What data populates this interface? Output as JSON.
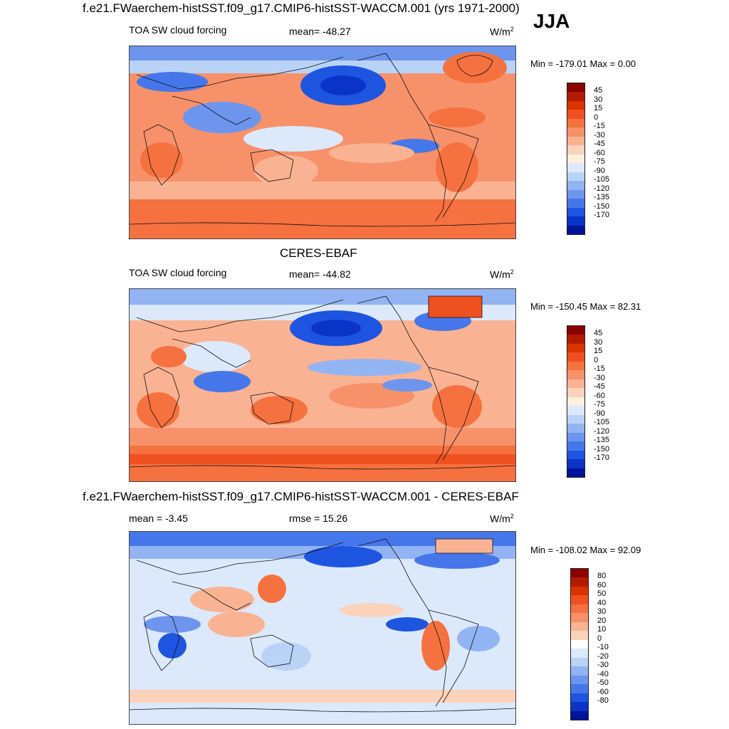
{
  "figure": {
    "title": "f.e21.FWaerchem-histSST.f09_g17.CMIP6-histSST-WACCM.001 (yrs 1971-2000)",
    "season": "JJA"
  },
  "panels": [
    {
      "subtitle": "",
      "left_label": "TOA SW cloud forcing",
      "center_label": "mean= -48.27",
      "unit_base": "W/m",
      "unit_exp": "2",
      "minmax": "Min = -179.01 Max =   0.00"
    },
    {
      "subtitle": "CERES-EBAF",
      "left_label": "TOA SW cloud forcing",
      "center_label": "mean= -44.82",
      "unit_base": "W/m",
      "unit_exp": "2",
      "minmax": "Min = -150.45 Max =  82.31"
    },
    {
      "subtitle": "f.e21.FWaerchem-histSST.f09_g17.CMIP6-histSST-WACCM.001 - CERES-EBAF",
      "left_label": "mean =  -3.45",
      "center_label": "rmse =  15.26",
      "unit_base": "W/m",
      "unit_exp": "2",
      "minmax": "Min = -108.02 Max =  92.09"
    }
  ],
  "colorbars": [
    {
      "levels": [
        "45",
        "30",
        "15",
        "0",
        "-15",
        "-30",
        "-45",
        "-60",
        "-75",
        "-90",
        "-105",
        "-120",
        "-135",
        "-150",
        "-170"
      ],
      "colors": [
        "#8b0000",
        "#b31b00",
        "#d93300",
        "#ef5020",
        "#f5713f",
        "#f7916a",
        "#f9b393",
        "#fbd2ba",
        "#fdf0dd",
        "#dce9fb",
        "#b9d3f7",
        "#92b4f3",
        "#6d95ee",
        "#4677ea",
        "#1e55e0",
        "#0a33c8",
        "#00139a"
      ]
    },
    {
      "levels": [
        "45",
        "30",
        "15",
        "0",
        "-15",
        "-30",
        "-45",
        "-60",
        "-75",
        "-90",
        "-105",
        "-120",
        "-135",
        "-150",
        "-170"
      ],
      "colors": [
        "#8b0000",
        "#b31b00",
        "#d93300",
        "#ef5020",
        "#f5713f",
        "#f7916a",
        "#f9b393",
        "#fbd2ba",
        "#fdf0dd",
        "#dce9fb",
        "#b9d3f7",
        "#92b4f3",
        "#6d95ee",
        "#4677ea",
        "#1e55e0",
        "#0a33c8",
        "#00139a"
      ]
    },
    {
      "levels": [
        "80",
        "60",
        "50",
        "40",
        "30",
        "20",
        "10",
        "0",
        "-10",
        "-20",
        "-30",
        "-40",
        "-50",
        "-60",
        "-80"
      ],
      "colors": [
        "#8b0000",
        "#b31b00",
        "#d93300",
        "#ef5020",
        "#f5713f",
        "#f7916a",
        "#f9b393",
        "#fbd2ba",
        "#ffffff",
        "#dce9fb",
        "#b9d3f7",
        "#92b4f3",
        "#6d95ee",
        "#4677ea",
        "#1e55e0",
        "#0a33c8",
        "#00139a"
      ]
    }
  ]
}
